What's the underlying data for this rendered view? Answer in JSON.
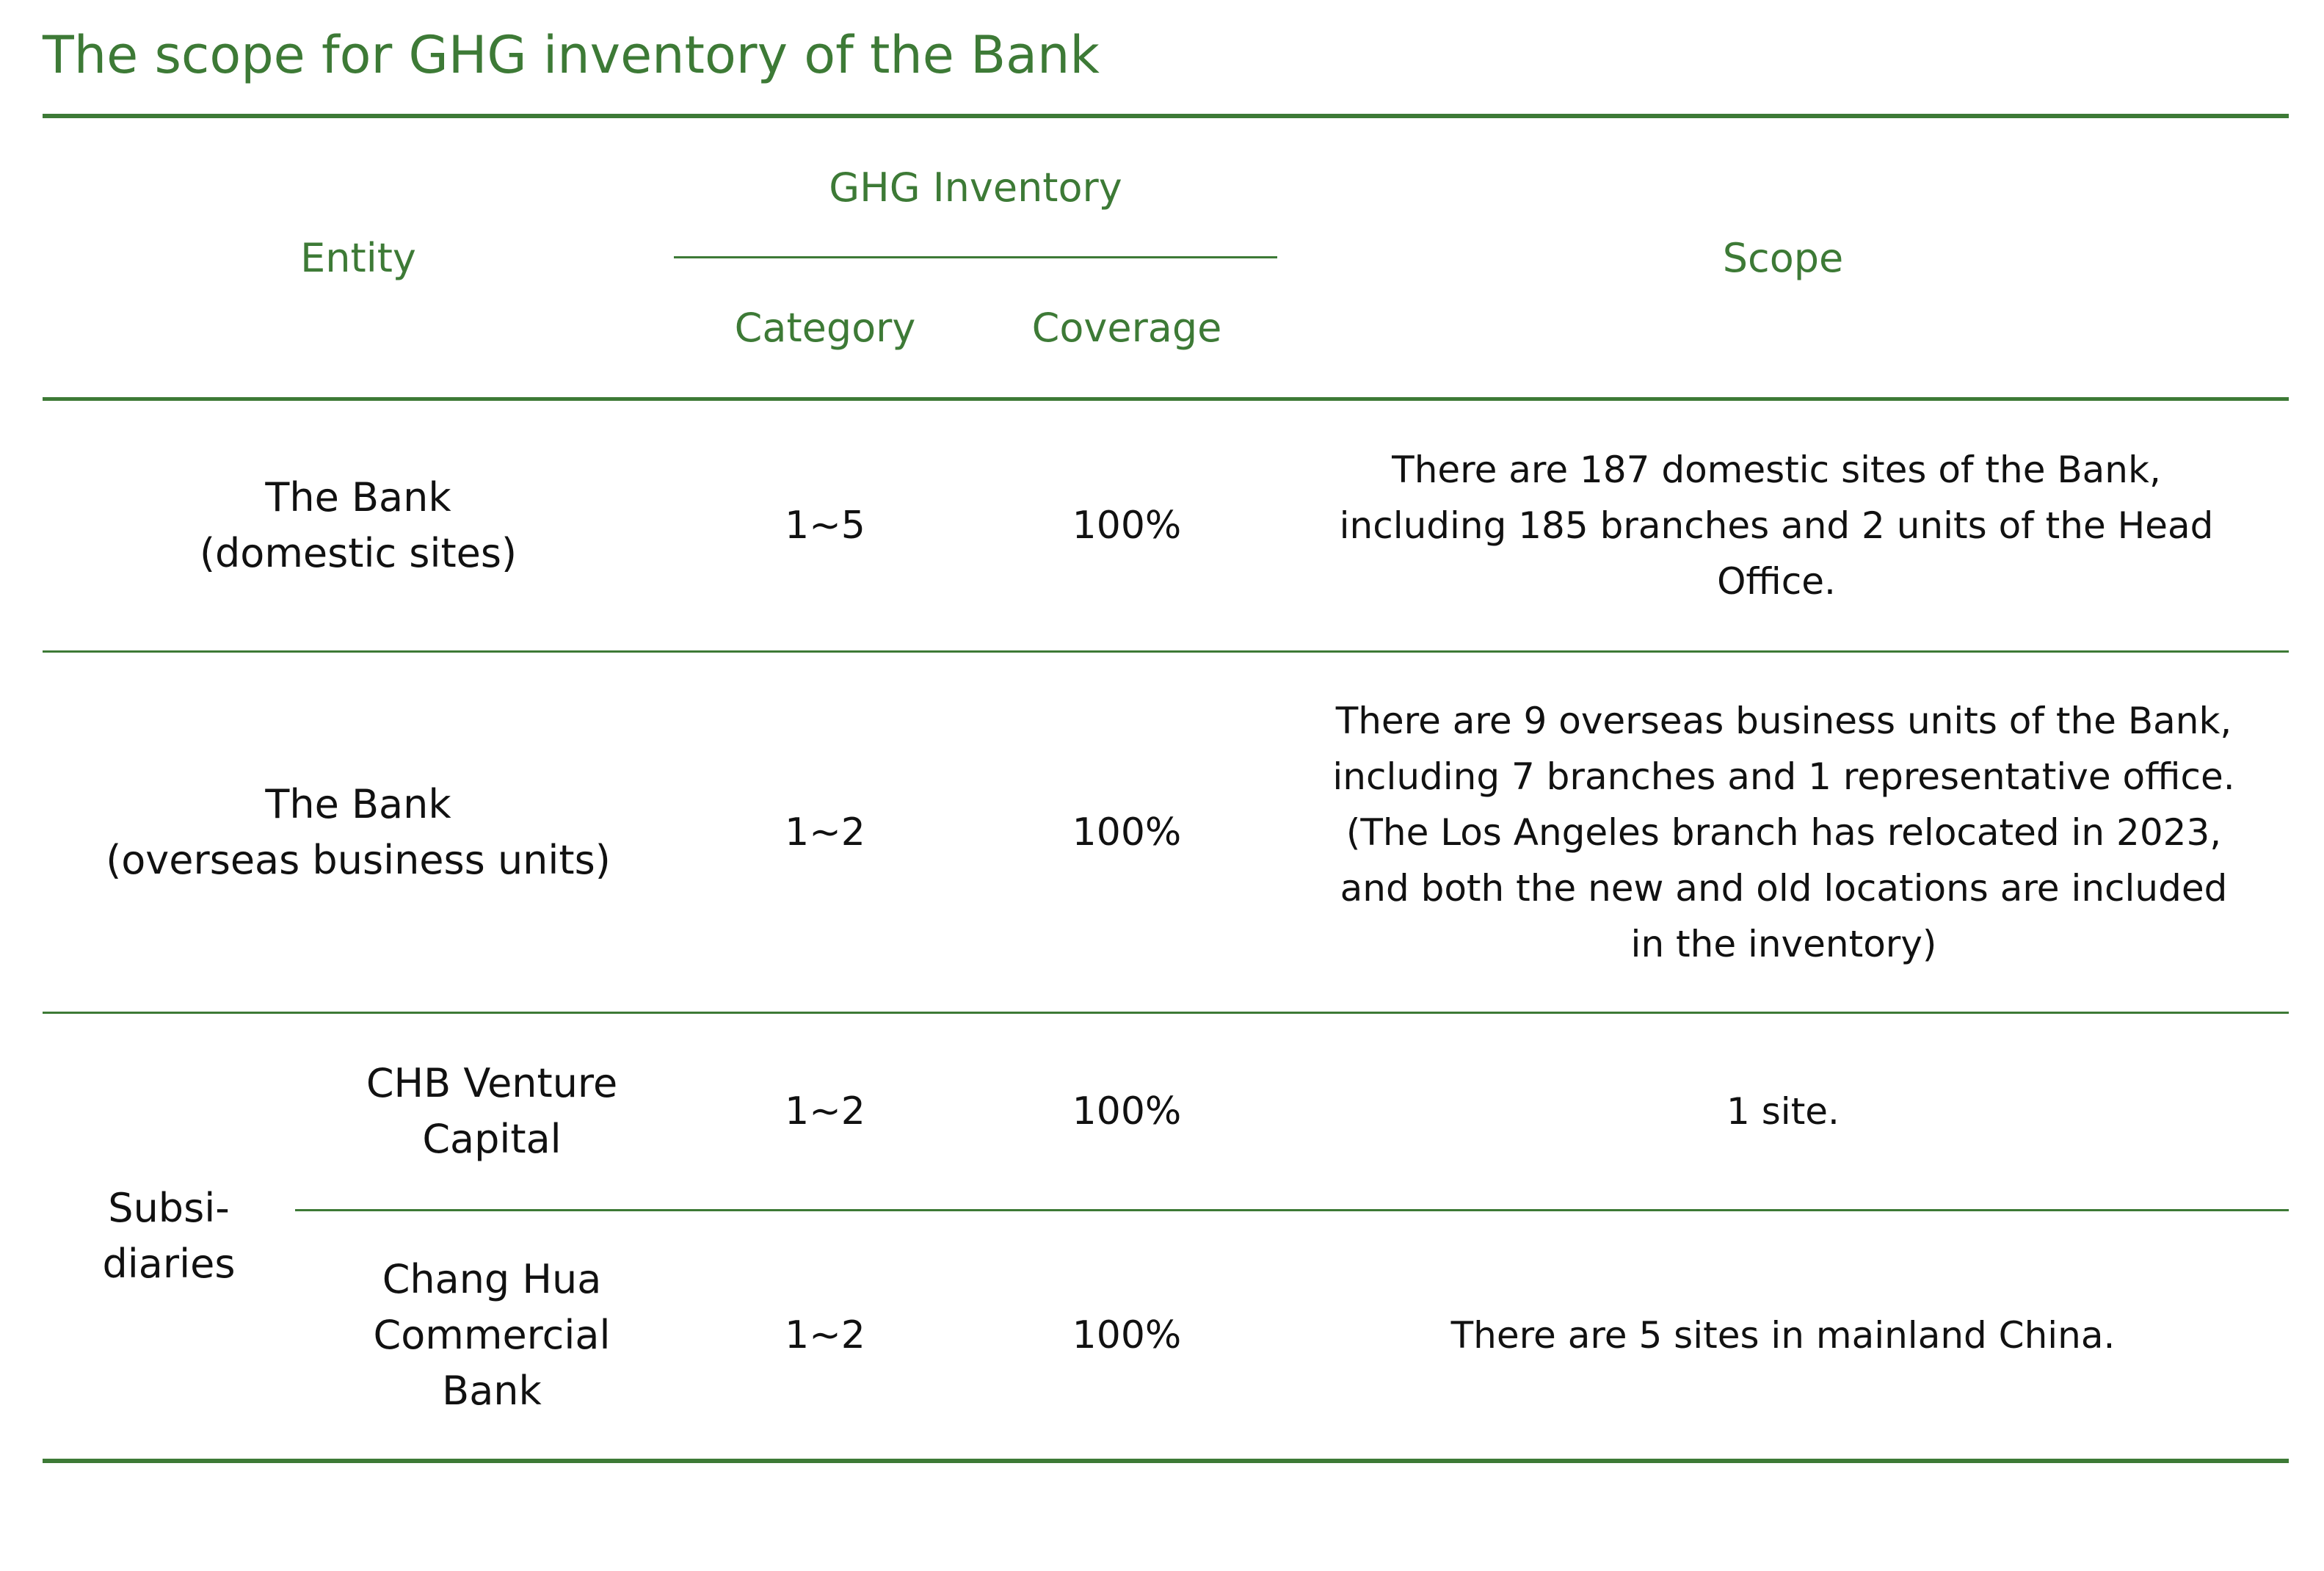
{
  "title": "The scope for GHG inventory of the Bank",
  "table": {
    "headers": {
      "entity": "Entity",
      "ghg_inventory": "GHG Inventory",
      "category": "Category",
      "coverage": "Coverage",
      "scope": "Scope"
    },
    "rows": [
      {
        "entity_line1": "The Bank",
        "entity_line2": "(domestic sites)",
        "category": "1~5",
        "coverage": "100%",
        "scope": "There are 187 domestic sites of the Bank, including 185 branches and 2 units of the Head Office."
      },
      {
        "entity_line1": "The Bank",
        "entity_line2": "(overseas business units)",
        "category": "1~2",
        "coverage": "100%",
        "scope": "There are 9 overseas business units of the Bank, including 7 branches and 1 representative office. (The Los Angeles branch has relocated in 2023, and both the new and old locations are included in the inventory)"
      }
    ],
    "subsidiaries": {
      "group_label_line1": "Subsi-",
      "group_label_line2": "diaries",
      "rows": [
        {
          "entity_line1": "CHB Venture",
          "entity_line2": "Capital",
          "category": "1~2",
          "coverage": "100%",
          "scope": "1 site."
        },
        {
          "entity_line1": "Chang Hua",
          "entity_line2": "Commercial",
          "entity_line3": "Bank",
          "category": "1~2",
          "coverage": "100%",
          "scope": "There are 5 sites in mainland China."
        }
      ]
    }
  },
  "colors": {
    "accent": "#3d7a36",
    "text": "#111111",
    "background": "#ffffff"
  }
}
